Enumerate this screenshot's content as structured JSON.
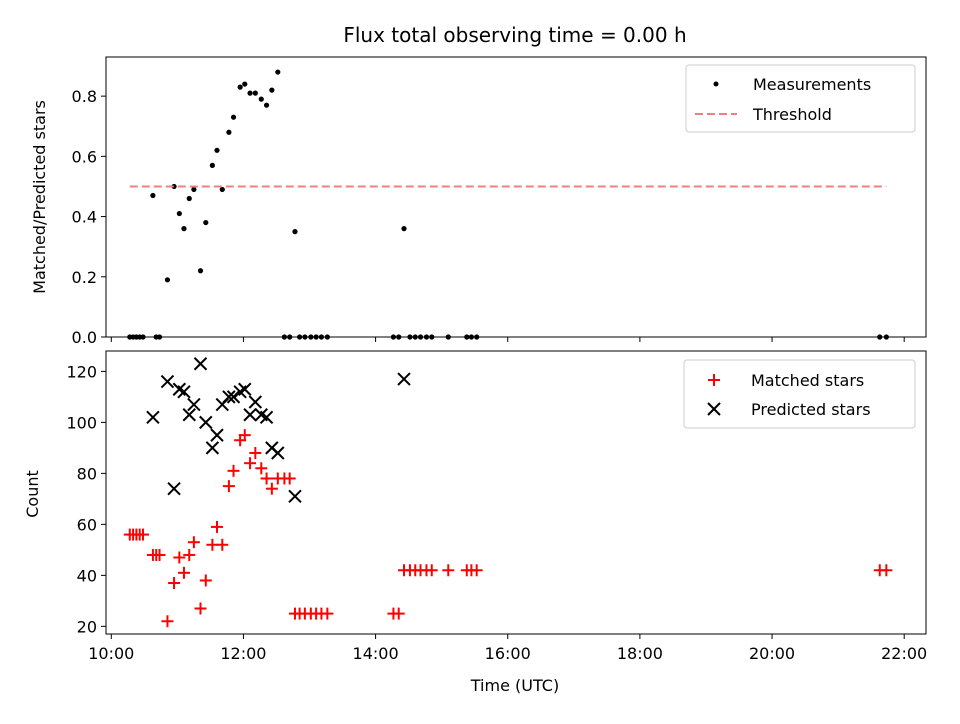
{
  "chart_data": [
    {
      "type": "scatter",
      "title": "Flux total observing time = 0.00 h",
      "xlabel": "",
      "ylabel": "Matched/Predicted stars",
      "xlim": [
        9.92,
        22.33
      ],
      "ylim": [
        0,
        0.93
      ],
      "yticks": [
        "0.0",
        "0.2",
        "0.4",
        "0.6",
        "0.8"
      ],
      "yticks_values": [
        0.0,
        0.2,
        0.4,
        0.6,
        0.8
      ],
      "legend_position": "top-right",
      "legend": [
        "Measurements",
        "Threshold"
      ],
      "series": [
        {
          "name": "Measurements",
          "marker": "dot",
          "color": "#000000",
          "x": [
            10.28,
            10.33,
            10.38,
            10.43,
            10.48,
            10.63,
            10.68,
            10.73,
            10.85,
            10.95,
            11.03,
            11.1,
            11.18,
            11.25,
            11.35,
            11.43,
            11.53,
            11.6,
            11.68,
            11.78,
            11.85,
            11.95,
            12.02,
            12.1,
            12.18,
            12.27,
            12.35,
            12.43,
            12.52,
            12.62,
            12.7,
            12.78,
            12.85,
            12.93,
            13.02,
            13.1,
            13.18,
            13.27,
            14.27,
            14.35,
            14.43,
            14.52,
            14.6,
            14.68,
            14.77,
            14.85,
            15.1,
            15.38,
            15.45,
            15.53,
            21.63,
            21.73
          ],
          "y": [
            0,
            0,
            0,
            0,
            0,
            0.47,
            0,
            0,
            0.19,
            0.5,
            0.41,
            0.36,
            0.46,
            0.49,
            0.22,
            0.38,
            0.57,
            0.62,
            0.49,
            0.68,
            0.73,
            0.83,
            0.84,
            0.81,
            0.81,
            0.79,
            0.77,
            0.82,
            0.88,
            0,
            0,
            0.35,
            0,
            0,
            0,
            0,
            0,
            0,
            0,
            0,
            0.36,
            0,
            0,
            0,
            0,
            0,
            0,
            0,
            0,
            0,
            0,
            0
          ]
        },
        {
          "name": "Threshold",
          "style": "dashed",
          "color": "#f08080",
          "x": [
            10.28,
            21.73
          ],
          "y": [
            0.5,
            0.5
          ]
        }
      ]
    },
    {
      "type": "scatter",
      "title": "",
      "xlabel": "Time (UTC)",
      "ylabel": "Count",
      "xlim": [
        9.92,
        22.33
      ],
      "ylim": [
        17,
        128
      ],
      "xticks": [
        "10:00",
        "12:00",
        "14:00",
        "16:00",
        "18:00",
        "20:00",
        "22:00"
      ],
      "xticks_values": [
        10,
        12,
        14,
        16,
        18,
        20,
        22
      ],
      "yticks": [
        "20",
        "40",
        "60",
        "80",
        "100",
        "120"
      ],
      "yticks_values": [
        20,
        40,
        60,
        80,
        100,
        120
      ],
      "legend_position": "top-right",
      "legend": [
        "Matched stars",
        "Predicted stars"
      ],
      "series": [
        {
          "name": "Matched stars",
          "marker": "plus",
          "color": "#ff0000",
          "x": [
            10.28,
            10.33,
            10.38,
            10.43,
            10.48,
            10.63,
            10.68,
            10.73,
            10.85,
            10.95,
            11.03,
            11.1,
            11.18,
            11.25,
            11.35,
            11.43,
            11.53,
            11.6,
            11.68,
            11.78,
            11.85,
            11.95,
            12.02,
            12.1,
            12.18,
            12.27,
            12.35,
            12.43,
            12.52,
            12.62,
            12.7,
            12.78,
            12.85,
            12.93,
            13.02,
            13.1,
            13.18,
            13.27,
            14.27,
            14.35,
            14.43,
            14.52,
            14.6,
            14.68,
            14.77,
            14.85,
            15.1,
            15.38,
            15.45,
            15.53,
            21.63,
            21.73
          ],
          "y": [
            56,
            56,
            56,
            56,
            56,
            48,
            48,
            48,
            22,
            37,
            47,
            41,
            48,
            53,
            27,
            38,
            52,
            59,
            52,
            75,
            81,
            93,
            95,
            84,
            88,
            82,
            78,
            74,
            78,
            78,
            78,
            25,
            25,
            25,
            25,
            25,
            25,
            25,
            25,
            25,
            42,
            42,
            42,
            42,
            42,
            42,
            42,
            42,
            42,
            42,
            42,
            42
          ]
        },
        {
          "name": "Predicted stars",
          "marker": "x",
          "color": "#000000",
          "x": [
            10.63,
            10.85,
            10.95,
            11.03,
            11.1,
            11.18,
            11.25,
            11.35,
            11.43,
            11.53,
            11.6,
            11.68,
            11.78,
            11.85,
            11.95,
            12.02,
            12.1,
            12.18,
            12.27,
            12.35,
            12.43,
            12.52,
            12.78,
            14.43
          ],
          "y": [
            102,
            116,
            74,
            113,
            112,
            103,
            107,
            123,
            100,
            90,
            95,
            107,
            110,
            110,
            112,
            113,
            103,
            108,
            103,
            102,
            90,
            88,
            71,
            117
          ]
        }
      ]
    }
  ]
}
